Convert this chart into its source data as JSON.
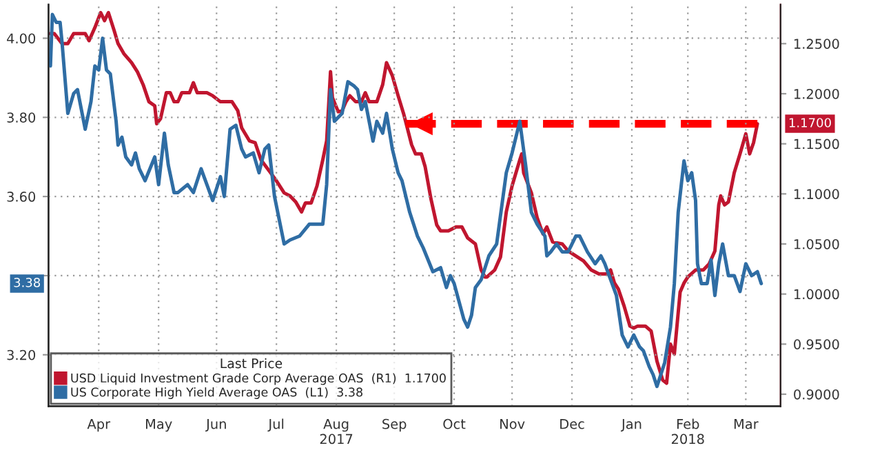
{
  "chart_data": {
    "type": "line",
    "xlim": [
      "2017-03-20",
      "2018-04-03"
    ],
    "xticks": [
      {
        "value": "2017-04-15",
        "label": "Apr"
      },
      {
        "value": "2017-05-16",
        "label": "May"
      },
      {
        "value": "2017-06-15",
        "label": "Jun"
      },
      {
        "value": "2017-07-16",
        "label": "Jul"
      },
      {
        "value": "2017-08-16",
        "label": "Aug\n2017"
      },
      {
        "value": "2017-09-15",
        "label": "Sep"
      },
      {
        "value": "2017-10-16",
        "label": "Oct"
      },
      {
        "value": "2017-11-15",
        "label": "Nov"
      },
      {
        "value": "2017-12-16",
        "label": "Dec"
      },
      {
        "value": "2018-01-16",
        "label": "Jan"
      },
      {
        "value": "2018-02-14",
        "label": "Feb\n2018"
      },
      {
        "value": "2018-03-16",
        "label": "Mar"
      }
    ],
    "ylim": [
      3.07,
      4.085
    ],
    "yticks": [
      {
        "value": 3.2,
        "label": "3.20"
      },
      {
        "value": 3.4,
        "label": null
      },
      {
        "value": 3.6,
        "label": "3.60"
      },
      {
        "value": 3.8,
        "label": "3.80"
      },
      {
        "value": 4.0,
        "label": "4.00"
      }
    ],
    "y2lim": [
      0.888,
      1.289
    ],
    "y2ticks": [
      {
        "value": 0.9,
        "label": "0.9000"
      },
      {
        "value": 0.95,
        "label": "0.9500"
      },
      {
        "value": 1.0,
        "label": "1.0000"
      },
      {
        "value": 1.05,
        "label": "1.0500"
      },
      {
        "value": 1.1,
        "label": "1.1000"
      },
      {
        "value": 1.15,
        "label": "1.1500"
      },
      {
        "value": 1.2,
        "label": "1.2000"
      },
      {
        "value": 1.25,
        "label": "1.2500"
      }
    ],
    "grid": true,
    "legend": "bottom left",
    "legend_title": "Last Price",
    "annotations": [
      "1.1700",
      "3.38"
    ],
    "series": [
      {
        "name": "USD Liquid Investment Grade Corp Average OAS  (R1)  1.1700",
        "axis": "y2",
        "color": "#c0162f",
        "x": [
          "2017-03-21",
          "2017-03-23",
          "2017-03-27",
          "2017-03-30",
          "2017-04-02",
          "2017-04-08",
          "2017-04-10",
          "2017-04-13",
          "2017-04-16",
          "2017-04-18",
          "2017-04-20",
          "2017-04-23",
          "2017-04-25",
          "2017-04-28",
          "2017-05-02",
          "2017-05-05",
          "2017-05-08",
          "2017-05-11",
          "2017-05-14",
          "2017-05-15",
          "2017-05-17",
          "2017-05-20",
          "2017-05-22",
          "2017-05-24",
          "2017-05-26",
          "2017-05-28",
          "2017-06-01",
          "2017-06-03",
          "2017-06-05",
          "2017-06-10",
          "2017-06-13",
          "2017-06-17",
          "2017-06-23",
          "2017-06-26",
          "2017-06-28",
          "2017-07-02",
          "2017-07-05",
          "2017-07-08",
          "2017-07-13",
          "2017-07-16",
          "2017-07-20",
          "2017-07-23",
          "2017-07-26",
          "2017-07-29",
          "2017-07-31",
          "2017-08-03",
          "2017-08-06",
          "2017-08-09",
          "2017-08-11",
          "2017-08-13",
          "2017-08-14",
          "2017-08-17",
          "2017-08-19",
          "2017-08-21",
          "2017-08-23",
          "2017-08-26",
          "2017-08-29",
          "2017-08-31",
          "2017-09-02",
          "2017-09-06",
          "2017-09-09",
          "2017-09-11",
          "2017-09-14",
          "2017-09-17",
          "2017-09-20",
          "2017-09-24",
          "2017-09-26",
          "2017-09-29",
          "2017-10-01",
          "2017-10-04",
          "2017-10-07",
          "2017-10-09",
          "2017-10-13",
          "2017-10-17",
          "2017-10-20",
          "2017-10-23",
          "2017-10-27",
          "2017-10-30",
          "2017-11-01",
          "2017-11-02",
          "2017-11-06",
          "2017-11-09",
          "2017-11-12",
          "2017-11-15",
          "2017-11-19",
          "2017-11-20",
          "2017-11-21",
          "2017-11-25",
          "2017-11-28",
          "2017-12-01",
          "2017-12-03",
          "2017-12-06",
          "2017-12-11",
          "2017-12-14",
          "2017-12-18",
          "2017-12-22",
          "2017-12-26",
          "2017-12-30",
          "2018-01-03",
          "2018-01-05",
          "2018-01-07",
          "2018-01-09",
          "2018-01-12",
          "2018-01-15",
          "2018-01-17",
          "2018-01-19",
          "2018-01-23",
          "2018-01-26",
          "2018-01-29",
          "2018-02-01",
          "2018-02-03",
          "2018-02-05",
          "2018-02-07",
          "2018-02-10",
          "2018-02-12",
          "2018-02-14",
          "2018-02-18",
          "2018-02-22",
          "2018-02-25",
          "2018-02-28",
          "2018-03-02",
          "2018-03-03",
          "2018-03-05",
          "2018-03-07",
          "2018-03-10",
          "2018-03-13",
          "2018-03-16",
          "2018-03-18",
          "2018-03-20",
          "2018-03-22"
        ],
        "values": [
          1.26,
          1.26,
          1.25,
          1.25,
          1.26,
          1.26,
          1.253,
          1.266,
          1.281,
          1.273,
          1.281,
          1.263,
          1.25,
          1.24,
          1.231,
          1.222,
          1.209,
          1.192,
          1.188,
          1.17,
          1.175,
          1.201,
          1.201,
          1.192,
          1.192,
          1.201,
          1.201,
          1.211,
          1.201,
          1.201,
          1.198,
          1.192,
          1.192,
          1.183,
          1.166,
          1.153,
          1.151,
          1.134,
          1.121,
          1.113,
          1.101,
          1.098,
          1.092,
          1.082,
          1.091,
          1.091,
          1.108,
          1.134,
          1.153,
          1.222,
          1.196,
          1.182,
          1.183,
          1.192,
          1.198,
          1.192,
          1.192,
          1.201,
          1.192,
          1.192,
          1.209,
          1.231,
          1.218,
          1.198,
          1.179,
          1.149,
          1.14,
          1.14,
          1.127,
          1.095,
          1.069,
          1.063,
          1.063,
          1.067,
          1.067,
          1.056,
          1.05,
          1.024,
          1.017,
          1.017,
          1.024,
          1.037,
          1.082,
          1.108,
          1.134,
          1.14,
          1.121,
          1.101,
          1.076,
          1.06,
          1.067,
          1.052,
          1.05,
          1.043,
          1.038,
          1.033,
          1.024,
          1.02,
          1.02,
          1.024,
          1.011,
          1.005,
          0.988,
          0.968,
          0.966,
          0.968,
          0.968,
          0.963,
          0.933,
          0.914,
          0.911,
          0.95,
          0.94,
          1.002,
          1.011,
          1.017,
          1.024,
          1.024,
          1.03,
          1.043,
          1.089,
          1.098,
          1.089,
          1.092,
          1.121,
          1.14,
          1.16,
          1.14,
          1.151,
          1.17
        ]
      },
      {
        "name": "US Corporate High Yield Average OAS  (L1)  3.38",
        "color": "#2f6da4",
        "x": [
          "2017-03-21",
          "2017-03-22",
          "2017-03-24",
          "2017-03-26",
          "2017-03-27",
          "2017-03-30",
          "2017-04-02",
          "2017-04-04",
          "2017-04-06",
          "2017-04-08",
          "2017-04-11",
          "2017-04-13",
          "2017-04-15",
          "2017-04-17",
          "2017-04-19",
          "2017-04-21",
          "2017-04-24",
          "2017-04-25",
          "2017-04-27",
          "2017-04-29",
          "2017-05-02",
          "2017-05-04",
          "2017-05-06",
          "2017-05-09",
          "2017-05-14",
          "2017-05-16",
          "2017-05-19",
          "2017-05-21",
          "2017-05-24",
          "2017-05-26",
          "2017-05-31",
          "2017-06-03",
          "2017-06-07",
          "2017-06-10",
          "2017-06-13",
          "2017-06-17",
          "2017-06-19",
          "2017-06-22",
          "2017-06-25",
          "2017-06-28",
          "2017-06-30",
          "2017-07-04",
          "2017-07-07",
          "2017-07-10",
          "2017-07-12",
          "2017-07-15",
          "2017-07-20",
          "2017-07-23",
          "2017-07-28",
          "2017-08-02",
          "2017-08-05",
          "2017-08-09",
          "2017-08-11",
          "2017-08-13",
          "2017-08-15",
          "2017-08-19",
          "2017-08-22",
          "2017-08-25",
          "2017-08-27",
          "2017-08-29",
          "2017-08-31",
          "2017-09-04",
          "2017-09-06",
          "2017-09-09",
          "2017-09-11",
          "2017-09-14",
          "2017-09-17",
          "2017-09-19",
          "2017-09-23",
          "2017-09-25",
          "2017-09-27",
          "2017-09-30",
          "2017-10-05",
          "2017-10-09",
          "2017-10-12",
          "2017-10-14",
          "2017-10-16",
          "2017-10-21",
          "2017-10-23",
          "2017-10-25",
          "2017-10-27",
          "2017-10-30",
          "2017-11-03",
          "2017-11-07",
          "2017-11-12",
          "2017-11-15",
          "2017-11-19",
          "2017-11-22",
          "2017-11-25",
          "2017-11-28",
          "2017-12-02",
          "2017-12-03",
          "2017-12-05",
          "2017-12-08",
          "2017-12-11",
          "2017-12-14",
          "2017-12-18",
          "2017-12-20",
          "2017-12-24",
          "2017-12-28",
          "2017-12-31",
          "2018-01-02",
          "2018-01-05",
          "2018-01-08",
          "2018-01-11",
          "2018-01-14",
          "2018-01-17",
          "2018-01-20",
          "2018-01-22",
          "2018-01-25",
          "2018-01-27",
          "2018-01-29",
          "2018-01-31",
          "2018-02-02",
          "2018-02-05",
          "2018-02-07",
          "2018-02-09",
          "2018-02-12",
          "2018-02-14",
          "2018-02-16",
          "2018-02-18",
          "2018-02-19",
          "2018-02-21",
          "2018-02-24",
          "2018-02-26",
          "2018-02-28",
          "2018-03-02",
          "2018-03-04",
          "2018-03-07",
          "2018-03-10",
          "2018-03-13",
          "2018-03-16",
          "2018-03-19",
          "2018-03-22",
          "2018-03-24"
        ],
        "values": [
          3.93,
          4.06,
          4.04,
          4.04,
          3.99,
          3.81,
          3.86,
          3.87,
          3.82,
          3.77,
          3.84,
          3.93,
          3.92,
          4.0,
          3.92,
          3.91,
          3.79,
          3.73,
          3.75,
          3.7,
          3.68,
          3.71,
          3.67,
          3.64,
          3.7,
          3.63,
          3.76,
          3.68,
          3.61,
          3.61,
          3.63,
          3.61,
          3.67,
          3.63,
          3.59,
          3.65,
          3.6,
          3.77,
          3.78,
          3.72,
          3.7,
          3.71,
          3.66,
          3.72,
          3.73,
          3.6,
          3.48,
          3.49,
          3.5,
          3.53,
          3.53,
          3.53,
          3.63,
          3.87,
          3.79,
          3.81,
          3.89,
          3.88,
          3.87,
          3.82,
          3.84,
          3.74,
          3.79,
          3.76,
          3.81,
          3.72,
          3.66,
          3.64,
          3.56,
          3.53,
          3.5,
          3.47,
          3.41,
          3.42,
          3.37,
          3.4,
          3.38,
          3.29,
          3.27,
          3.3,
          3.37,
          3.39,
          3.45,
          3.48,
          3.66,
          3.71,
          3.79,
          3.68,
          3.56,
          3.53,
          3.5,
          3.45,
          3.46,
          3.48,
          3.46,
          3.46,
          3.5,
          3.5,
          3.46,
          3.43,
          3.45,
          3.43,
          3.39,
          3.35,
          3.25,
          3.22,
          3.25,
          3.22,
          3.21,
          3.17,
          3.15,
          3.12,
          3.15,
          3.18,
          3.27,
          3.38,
          3.56,
          3.69,
          3.64,
          3.66,
          3.59,
          3.43,
          3.38,
          3.38,
          3.44,
          3.35,
          3.43,
          3.48,
          3.4,
          3.4,
          3.36,
          3.43,
          3.4,
          3.41,
          3.38
        ]
      },
      {
        "type": "line",
        "axis": "y2",
        "color": "#ff0000",
        "line_style": "dashed",
        "x": [
          "2018-03-22",
          "2017-09-21"
        ],
        "values": [
          1.17,
          1.17
        ]
      }
    ]
  }
}
